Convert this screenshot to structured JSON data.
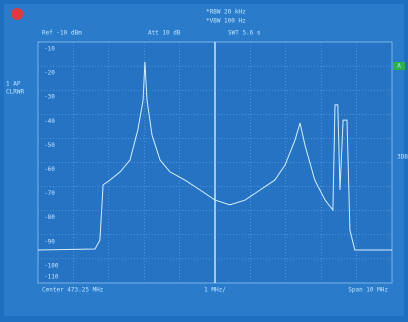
{
  "chart_data": {
    "type": "line",
    "annotations": [
      "*RBW 20 kHz",
      "*VBW 100 Hz",
      "Ref -10 dBm",
      "Att 10 dB",
      "SWT 5.6 s",
      "1 AP",
      "CLRWR",
      "A",
      "3DB",
      "Center 473.25 MHz",
      "1 MHz/",
      "Span 10 MHz"
    ],
    "x": [
      468.25,
      469.86,
      470.0,
      470.09,
      470.28,
      470.57,
      470.85,
      471.07,
      471.22,
      471.27,
      471.33,
      471.47,
      471.7,
      471.98,
      472.4,
      472.83,
      473.25,
      473.67,
      474.1,
      474.52,
      474.94,
      475.23,
      475.51,
      475.65,
      475.79,
      476.07,
      476.36,
      476.58,
      476.64,
      476.72,
      476.78,
      476.87,
      476.98,
      477.06,
      477.2,
      478.25
    ],
    "values": [
      -96.3,
      -95.9,
      -92.2,
      -69.3,
      -67.3,
      -63.9,
      -59,
      -46.5,
      -34.1,
      -18.3,
      -34.1,
      -48.6,
      -59,
      -63.9,
      -67.3,
      -71.4,
      -75.6,
      -77.6,
      -75.6,
      -71.4,
      -67.3,
      -61,
      -50.7,
      -43.6,
      -52.7,
      -67.3,
      -75.6,
      -79.7,
      -36.1,
      -36.1,
      -71.4,
      -42.4,
      -42.4,
      -88,
      -96.3,
      -96.3
    ],
    "color": "#d6efff",
    "xlim": [
      468.25,
      478.25
    ],
    "ylim": [
      -110,
      -10
    ],
    "yticks": [
      -10,
      -20,
      -30,
      -40,
      -50,
      -60,
      -70,
      -80,
      -90,
      -100,
      -110
    ],
    "grid": true
  }
}
